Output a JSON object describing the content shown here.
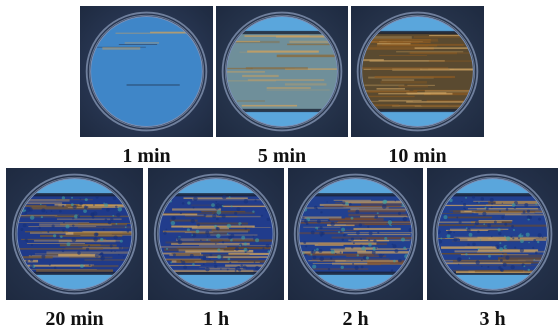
{
  "figure": {
    "top_row": [
      {
        "label": "1 min",
        "state": "early",
        "colors": {
          "bg": "#35466a",
          "disk": "#3f86c8",
          "streak": "#2a3550"
        }
      },
      {
        "label": "5 min",
        "state": "mid",
        "colors": {
          "bg": "#33445f",
          "disk": "#6f8f9a",
          "streak": "#8a6a3a"
        }
      },
      {
        "label": "10 min",
        "state": "late",
        "colors": {
          "bg": "#33425c",
          "disk": "#5a4a30",
          "streak": "#8a5a22"
        }
      }
    ],
    "bottom_row": [
      {
        "label": "20 min",
        "state": "saturated",
        "colors": {
          "bg": "#2d3c5a",
          "disk": "#1f3a8a",
          "streak": "#7a5a30"
        }
      },
      {
        "label": "1 h",
        "state": "saturated",
        "colors": {
          "bg": "#2d3c5a",
          "disk": "#213c8c",
          "streak": "#6a4a2a"
        }
      },
      {
        "label": "2 h",
        "state": "saturated",
        "colors": {
          "bg": "#2d3c5a",
          "disk": "#21408f",
          "streak": "#7a4a2a"
        }
      },
      {
        "label": "3 h",
        "state": "saturated",
        "colors": {
          "bg": "#2d3c5a",
          "disk": "#22408f",
          "streak": "#6a4a2a"
        }
      }
    ]
  }
}
